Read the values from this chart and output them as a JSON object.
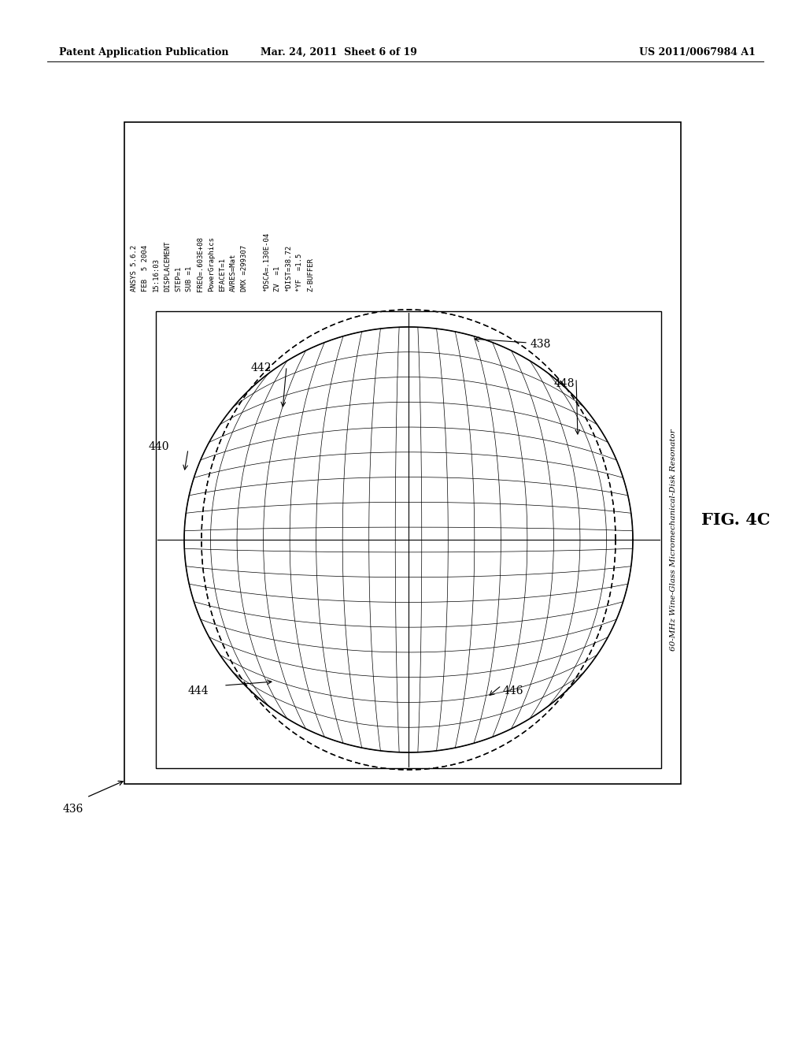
{
  "title": "FIG. 4C",
  "patent_header_left": "Patent Application Publication",
  "patent_header_mid": "Mar. 24, 2011  Sheet 6 of 19",
  "patent_header_right": "US 2011/0067984 A1",
  "fig_label": "FIG. 4C",
  "ansys_text": [
    "ANSYS 5.6.2",
    "FEB  5 2004",
    "15:16:03",
    "DISPLACEMENT",
    "STEP=1",
    "SUB =1",
    "FREQ=.603E+08",
    "PowerGraphics",
    "EFACET=1",
    "AVRES=Mat",
    "DMX =299307",
    "",
    "*DSCA=.130E-04",
    "ZV  =1",
    "*DIST=38.72",
    "*YF  =1.5",
    "Z-BUFFER"
  ],
  "label_436": "436",
  "label_438": "438",
  "label_440": "440",
  "label_442": "442",
  "label_444": "444",
  "label_446": "446",
  "label_448": "448",
  "side_text": "60-MHz Wine-Glass Micromechanical-Disk Resonator",
  "background_color": "#ffffff"
}
